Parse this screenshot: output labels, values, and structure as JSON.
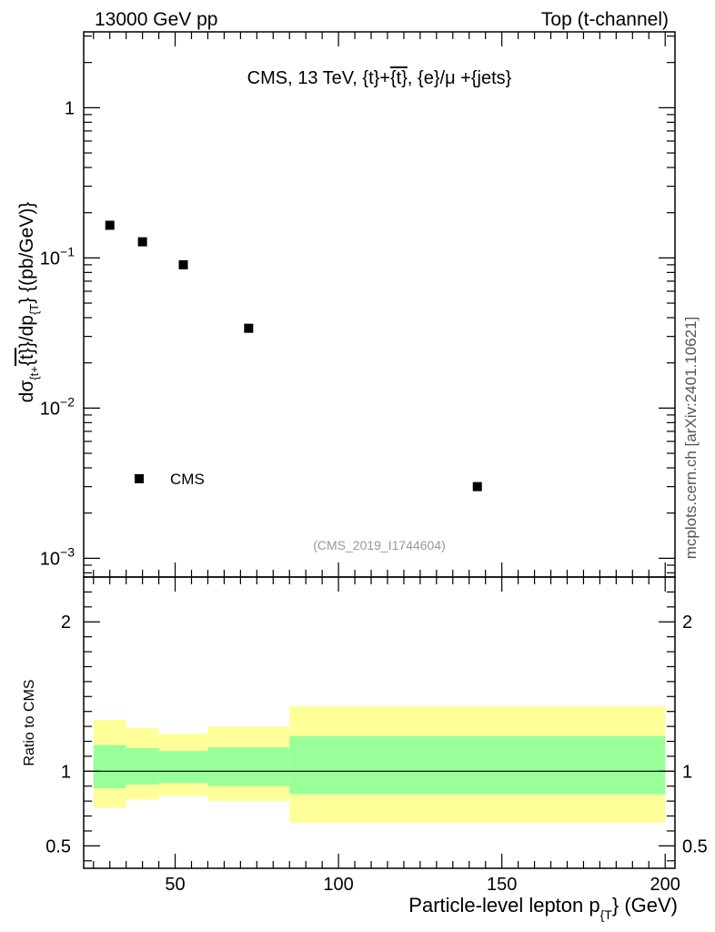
{
  "header": {
    "left": "13000 GeV pp",
    "right": "Top (t-channel)"
  },
  "watermark": "mcplots.cern.ch [arXiv:2401.10621]",
  "chart_data": [
    {
      "type": "scatter",
      "panel": "main",
      "title": "CMS, 13 TeV, {t}+{t̄}, {e}/μ +{jets}",
      "title_parts": {
        "pre": "CMS, 13 TeV, {t}+",
        "bar": "{t}",
        "post": ", {e}/μ +{jets}"
      },
      "ylabel": {
        "main": "dσ",
        "sub1": "{t+",
        "bar": "{t}",
        "mid": "}/dp",
        "sub2": "{T",
        "tail": "}  {(pb/GeV)}"
      },
      "yscale": "log",
      "ylim": [
        0.00075,
        3.2
      ],
      "xlim": [
        22,
        203
      ],
      "y_ticks": [
        {
          "value": 1,
          "base": "1",
          "exp": ""
        },
        {
          "value": 0.1,
          "base": "10",
          "exp": "−1"
        },
        {
          "value": 0.01,
          "base": "10",
          "exp": "−2"
        },
        {
          "value": 0.001,
          "base": "10",
          "exp": "−3"
        }
      ],
      "series": [
        {
          "name": "CMS",
          "x": [
            30,
            40,
            52.5,
            72.5,
            142.5
          ],
          "y": [
            0.165,
            0.128,
            0.09,
            0.034,
            0.003
          ]
        }
      ],
      "legend": {
        "label": "CMS",
        "placement": "bottom-left"
      },
      "annotation": "(CMS_2019_I1744604)",
      "annotation_color": "#999999"
    },
    {
      "type": "area",
      "panel": "ratio",
      "ylabel": "Ratio to CMS",
      "xlabel": {
        "main": "Particle-level lepton p",
        "sub": "{T",
        "tail": "} (GeV)"
      },
      "xlim": [
        22,
        203
      ],
      "ylim": [
        0.35,
        2.3
      ],
      "x_ticks": [
        50,
        100,
        150,
        200
      ],
      "y_ticks": [
        0.5,
        1,
        2
      ],
      "reference_line": 1,
      "bins": [
        {
          "lo": 25,
          "hi": 35,
          "inner": [
            0.885,
            1.175
          ],
          "outer": [
            0.755,
            1.345
          ]
        },
        {
          "lo": 35,
          "hi": 45,
          "inner": [
            0.91,
            1.155
          ],
          "outer": [
            0.81,
            1.29
          ]
        },
        {
          "lo": 45,
          "hi": 60,
          "inner": [
            0.92,
            1.135
          ],
          "outer": [
            0.835,
            1.25
          ]
        },
        {
          "lo": 60,
          "hi": 85,
          "inner": [
            0.9,
            1.16
          ],
          "outer": [
            0.8,
            1.3
          ]
        },
        {
          "lo": 85,
          "hi": 200,
          "inner": [
            0.845,
            1.235
          ],
          "outer": [
            0.655,
            1.435
          ]
        }
      ],
      "colors": {
        "inner": "#99ff99",
        "outer": "#ffff99"
      }
    }
  ]
}
